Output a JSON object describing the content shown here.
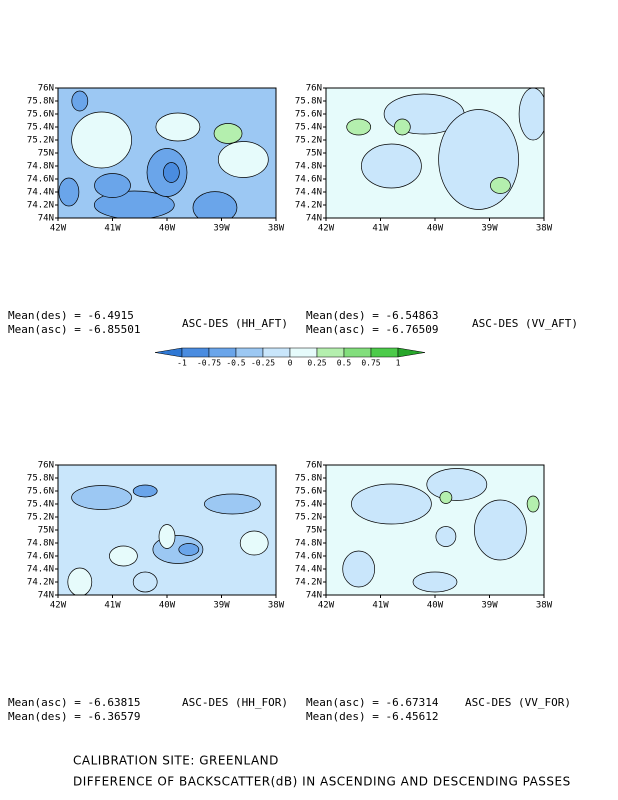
{
  "panels": [
    {
      "label": "ASC-DES (HH_AFT)",
      "means": [
        "Mean(des) = -6.4915",
        "Mean(asc) = -6.85501"
      ]
    },
    {
      "label": "ASC-DES (VV_AFT)",
      "means": [
        "Mean(des) = -6.54863",
        "Mean(asc) = -6.76509"
      ]
    },
    {
      "label": "ASC-DES (HH_FOR)",
      "means": [
        "Mean(asc) = -6.63815",
        "Mean(des) = -6.36579"
      ]
    },
    {
      "label": "ASC-DES (VV_FOR)",
      "means": [
        "Mean(asc) = -6.67314",
        "Mean(des) = -6.45612"
      ]
    }
  ],
  "yticks": [
    "76N",
    "75.8N",
    "75.6N",
    "75.4N",
    "75.2N",
    "75N",
    "74.8N",
    "74.6N",
    "74.4N",
    "74.2N",
    "74N"
  ],
  "xticks": [
    "42W",
    "41W",
    "40W",
    "39W",
    "38W"
  ],
  "colorbar": {
    "levels": [
      -1,
      -0.75,
      -0.5,
      -0.25,
      0,
      0.25,
      0.5,
      0.75,
      1
    ],
    "colors": [
      "#2f78d4",
      "#4a8ce0",
      "#6aa5ea",
      "#9cc8f3",
      "#c9e6fb",
      "#e6fbfb",
      "#b4efae",
      "#82de7c",
      "#4ccb4a",
      "#27a62a"
    ]
  },
  "footer": [
    "CALIBRATION SITE: GREENLAND",
    "DIFFERENCE OF BACKSCATTER(dB) IN ASCENDING AND DESCENDING PASSES"
  ]
}
